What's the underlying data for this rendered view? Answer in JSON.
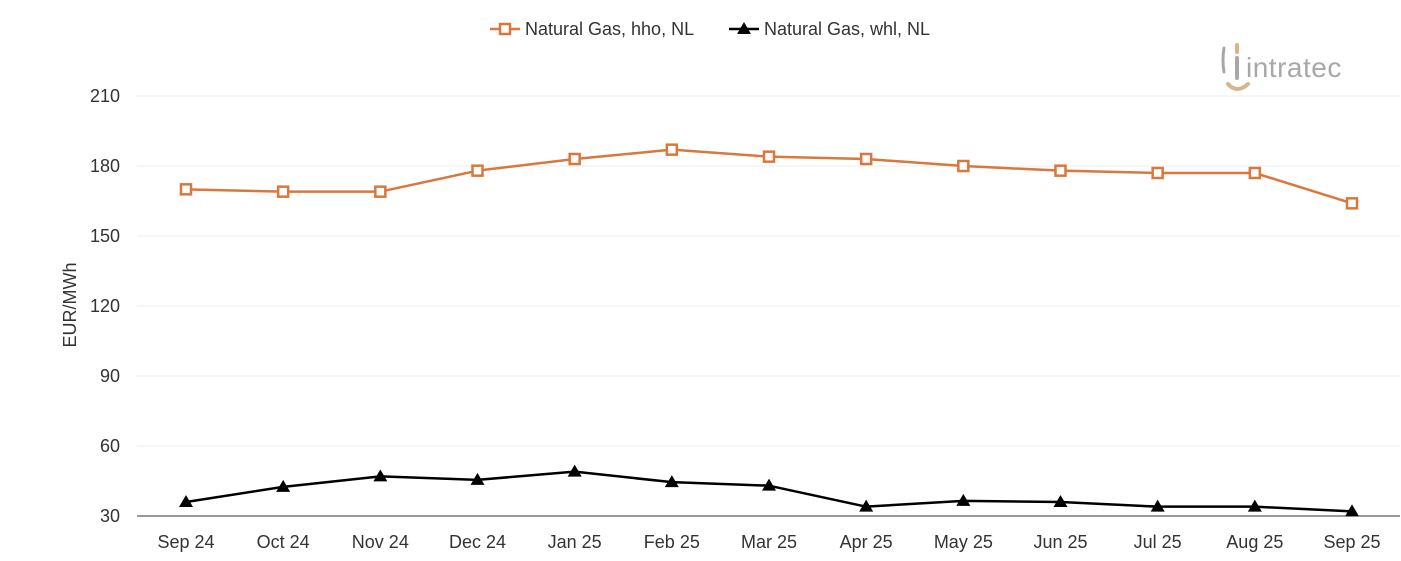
{
  "chart_data": {
    "type": "line",
    "title": "",
    "xlabel": "",
    "ylabel": "EUR/MWh",
    "categories": [
      "Sep 24",
      "Oct 24",
      "Nov 24",
      "Dec 24",
      "Jan 25",
      "Feb 25",
      "Mar 25",
      "Apr 25",
      "May 25",
      "Jun 25",
      "Jul 25",
      "Aug 25",
      "Sep 25"
    ],
    "ylim": [
      30,
      210
    ],
    "yticks": [
      30,
      60,
      90,
      120,
      150,
      180,
      210
    ],
    "grid": true,
    "legend_position": "top-center",
    "series": [
      {
        "name": "Natural Gas, hho, NL",
        "color": "#d9773d",
        "marker": "open-square",
        "values": [
          170,
          169,
          169,
          178,
          183,
          187,
          184,
          183,
          180,
          178,
          177,
          177,
          164
        ]
      },
      {
        "name": "Natural Gas, whl, NL",
        "color": "#000000",
        "marker": "filled-triangle",
        "values": [
          36,
          42.5,
          47,
          45.5,
          49,
          44.5,
          43,
          34,
          36.5,
          36,
          34,
          34,
          32
        ]
      }
    ]
  },
  "logo": {
    "text": "intratec"
  }
}
